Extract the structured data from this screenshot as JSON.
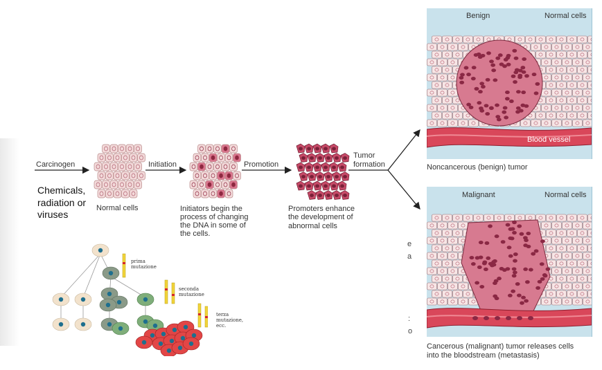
{
  "flow": {
    "carcinogen": "Carcinogen",
    "carcinogen_sources": [
      "Chemicals,",
      "radiation or",
      "viruses"
    ],
    "initiation": "Initiation",
    "promotion": "Promotion",
    "tumor_formation": [
      "Tumor",
      "formation"
    ],
    "normal_cells": "Normal cells",
    "initiators_text": [
      "Initiators begin the",
      "process of changing",
      "the DNA in some of",
      "the cells."
    ],
    "promoters_text": [
      "Promoters enhance",
      "the development of",
      "abnormal cells"
    ]
  },
  "benign_panel": {
    "label_benign": "Benign",
    "label_normal": "Normal cells",
    "label_vessel": "Blood vessel",
    "caption": "Noncancerous (benign) tumor"
  },
  "malignant_panel": {
    "label_malignant": "Malignant",
    "label_normal": "Normal cells",
    "caption": [
      "Cancerous (malignant) tumor releases cells",
      "into the bloodstream (metastasis)"
    ]
  },
  "mutation_tree": {
    "first": [
      "prima",
      "mutazione"
    ],
    "second": [
      "seconda",
      "mutazione"
    ],
    "third": [
      "terza",
      "mutazione,",
      "ecc."
    ]
  },
  "stray_chars": [
    "e",
    "a",
    ":",
    "o"
  ],
  "colors": {
    "normal_cell_fill": "#f3dada",
    "abnormal_cell_fill": "#c74a68",
    "panel_bg": "#c9e2ec",
    "vessel": "#d9475a",
    "healthy_cell": "#f2e2cc",
    "mutated_grey": "#8a9a88",
    "mutated_green": "#7fae7a",
    "tumor_red": "#e24646"
  }
}
